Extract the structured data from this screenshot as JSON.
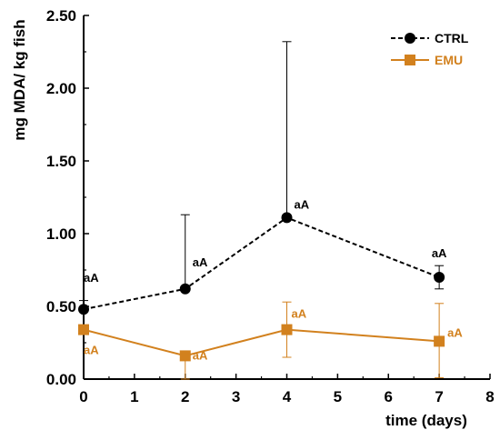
{
  "chart_data": {
    "type": "line",
    "xlabel": "time (days)",
    "ylabel": "mg MDA/ kg fish",
    "xlim": [
      0,
      8
    ],
    "ylim": [
      0,
      2.5
    ],
    "xticks": [
      0,
      1,
      2,
      3,
      4,
      5,
      6,
      7,
      8
    ],
    "yticks": [
      "0.00",
      "0.50",
      "1.00",
      "1.50",
      "2.00",
      "2.50"
    ],
    "grid": false,
    "legend_position": "top-right",
    "series": [
      {
        "name": "CTRL",
        "color": "#000000",
        "line_style": "dashed",
        "marker": "circle",
        "x": [
          0,
          2,
          4,
          7
        ],
        "y": [
          0.48,
          0.62,
          1.11,
          0.7
        ],
        "err_low": [
          0.48,
          0.62,
          1.11,
          0.62
        ],
        "err_high": [
          0.54,
          1.13,
          2.32,
          0.78
        ],
        "labels": [
          "aA",
          "aA",
          "aA",
          "aA"
        ]
      },
      {
        "name": "EMU",
        "color": "#D2811E",
        "line_style": "solid",
        "marker": "square",
        "x": [
          0,
          2,
          4,
          7
        ],
        "y": [
          0.34,
          0.16,
          0.34,
          0.26
        ],
        "err_low": [
          0.34,
          0.0,
          0.15,
          0.01
        ],
        "err_high": [
          0.34,
          0.16,
          0.53,
          0.52
        ],
        "labels": [
          "aA",
          "aA",
          "aA",
          "aA"
        ]
      }
    ]
  }
}
